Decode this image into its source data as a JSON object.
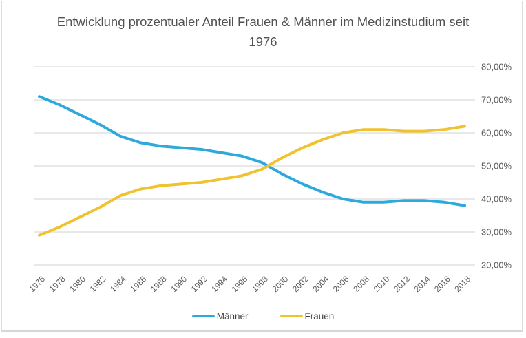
{
  "chart_data": {
    "type": "line",
    "title": "Entwicklung prozentualer Anteil Frauen & Männer im Medizinstudium seit 1976",
    "x": [
      1976,
      1978,
      1980,
      1982,
      1984,
      1986,
      1988,
      1990,
      1992,
      1994,
      1996,
      1998,
      2000,
      2002,
      2004,
      2006,
      2008,
      2010,
      2012,
      2014,
      2016,
      2018
    ],
    "series": [
      {
        "name": "Männer",
        "color": "#2EA9DC",
        "values": [
          71,
          68.5,
          65.5,
          62.5,
          59,
          57,
          56,
          55.5,
          55,
          54,
          53,
          51,
          47.5,
          44.5,
          42,
          40,
          39,
          39,
          39.5,
          39.5,
          39,
          38
        ]
      },
      {
        "name": "Frauen",
        "color": "#F0C22E",
        "values": [
          29,
          31.5,
          34.5,
          37.5,
          41,
          43,
          44,
          44.5,
          45,
          46,
          47,
          49,
          52.5,
          55.5,
          58,
          60,
          61,
          61,
          60.5,
          60.5,
          61,
          62
        ]
      }
    ],
    "ylim": [
      20,
      80
    ],
    "y_ticks": [
      {
        "value": 80,
        "label": "80,00%"
      },
      {
        "value": 70,
        "label": "70,00%"
      },
      {
        "value": 60,
        "label": "60,00%"
      },
      {
        "value": 50,
        "label": "50,00%"
      },
      {
        "value": 40,
        "label": "40,00%"
      },
      {
        "value": 30,
        "label": "30,00%"
      },
      {
        "value": 20,
        "label": "20,00%"
      }
    ],
    "y_axis_side": "right",
    "grid": true,
    "x_label_rotation": -45,
    "legend_position": "bottom"
  },
  "colors": {
    "gridline": "#DBDBDB",
    "axis_text": "#595959",
    "title_text": "#525252",
    "frame_border": "#DCDCDC"
  }
}
